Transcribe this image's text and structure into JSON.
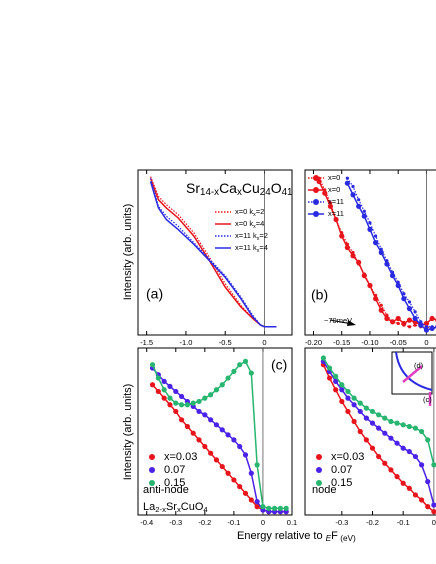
{
  "y_label": "Intensity (arb. units)",
  "x_label_parts": [
    "Energy relative to ",
    "E",
    "F",
    " (eV)"
  ],
  "chart_data": [
    {
      "type": "line",
      "panel_label": "(a)",
      "legend": "right",
      "formula_parts": [
        "Sr",
        "14-x",
        "Ca",
        "x",
        "Cu",
        "24",
        "O",
        "41"
      ],
      "xlim": [
        -1.61,
        0.35
      ],
      "ylim": [
        0,
        1
      ],
      "xticks": [
        -1.5,
        {
          "value": -1.0,
          "label": "-1.0"
        },
        -0.5,
        0
      ],
      "series": [
        {
          "name": [
            "x=0  k",
            "x",
            "=2"
          ],
          "color": "#e8141c",
          "dash": "dotted",
          "x": [
            -1.45,
            -1.35,
            -1.25,
            -1.1,
            -0.9,
            -0.7,
            -0.5,
            -0.3,
            -0.15,
            -0.05,
            0,
            0.15
          ],
          "values": [
            0.96,
            0.84,
            0.79,
            0.73,
            0.62,
            0.47,
            0.31,
            0.18,
            0.1,
            0.06,
            0.05,
            0.05
          ]
        },
        {
          "name": [
            "x=0  k",
            "x",
            "=4"
          ],
          "color": "#e8141c",
          "x": [
            -1.45,
            -1.35,
            -1.25,
            -1.1,
            -0.9,
            -0.7,
            -0.5,
            -0.3,
            -0.15,
            -0.05,
            0,
            0.15
          ],
          "values": [
            0.95,
            0.82,
            0.77,
            0.71,
            0.6,
            0.45,
            0.29,
            0.17,
            0.1,
            0.06,
            0.05,
            0.05
          ]
        },
        {
          "name": [
            "x=11 k",
            "x",
            "=2"
          ],
          "color": "#2a2ae0",
          "dash": "dotted",
          "x": [
            -1.45,
            -1.35,
            -1.25,
            -1.1,
            -0.9,
            -0.7,
            -0.5,
            -0.3,
            -0.15,
            -0.05,
            0,
            0.15
          ],
          "values": [
            0.95,
            0.78,
            0.72,
            0.66,
            0.56,
            0.46,
            0.36,
            0.23,
            0.12,
            0.06,
            0.05,
            0.05
          ]
        },
        {
          "name": [
            "x=11 k",
            "x",
            "=4"
          ],
          "color": "#2a2ae0",
          "x": [
            -1.45,
            -1.35,
            -1.25,
            -1.1,
            -0.9,
            -0.7,
            -0.5,
            -0.3,
            -0.15,
            -0.05,
            0,
            0.15
          ],
          "values": [
            0.93,
            0.77,
            0.7,
            0.64,
            0.55,
            0.45,
            0.35,
            0.22,
            0.11,
            0.06,
            0.05,
            0.05
          ]
        }
      ]
    },
    {
      "type": "line",
      "panel_label": "(b)",
      "legend": "right",
      "note": "~70meV",
      "xlim": [
        -0.215,
        0.024
      ],
      "ylim": [
        0,
        1
      ],
      "xticks": [
        {
          "value": -0.2,
          "label": "-0.20"
        },
        -0.15,
        {
          "value": -0.1,
          "label": "-0.10"
        },
        -0.05,
        0
      ],
      "series": [
        {
          "name": "x=0",
          "color": "#e8141c",
          "dash": "dotted",
          "markers": true,
          "x": [
            -0.19,
            -0.18,
            -0.17,
            -0.16,
            -0.15,
            -0.14,
            -0.13,
            -0.12,
            -0.11,
            -0.1,
            -0.09,
            -0.08,
            -0.07,
            -0.06,
            -0.05,
            -0.04,
            -0.03,
            -0.02,
            -0.01,
            0,
            0.01,
            0.02
          ],
          "values": [
            0.95,
            0.88,
            0.8,
            0.7,
            0.62,
            0.55,
            0.5,
            0.43,
            0.37,
            0.3,
            0.24,
            0.18,
            0.12,
            0.08,
            0.07,
            0.06,
            0.05,
            0.06,
            0.05,
            0.05,
            0.04,
            0.04
          ]
        },
        {
          "name": "x=0",
          "color": "#e8141c",
          "markers": true,
          "x": [
            -0.19,
            -0.18,
            -0.17,
            -0.16,
            -0.15,
            -0.14,
            -0.13,
            -0.12,
            -0.11,
            -0.1,
            -0.09,
            -0.08,
            -0.07,
            -0.06,
            -0.05,
            -0.04,
            -0.03,
            -0.02,
            -0.01,
            0,
            0.01,
            0.02
          ],
          "values": [
            0.93,
            0.86,
            0.78,
            0.7,
            0.6,
            0.53,
            0.48,
            0.44,
            0.36,
            0.3,
            0.22,
            0.15,
            0.1,
            0.08,
            0.1,
            0.07,
            0.09,
            0.08,
            0.06,
            0.07,
            0.1,
            0.09
          ]
        },
        {
          "name": "x=11",
          "color": "#2a2ae0",
          "dash": "dotted",
          "markers": true,
          "x": [
            -0.14,
            -0.13,
            -0.12,
            -0.11,
            -0.1,
            -0.09,
            -0.08,
            -0.07,
            -0.06,
            -0.05,
            -0.04,
            -0.03,
            -0.02,
            -0.01,
            0,
            0.01,
            0.02
          ],
          "values": [
            0.95,
            0.9,
            0.82,
            0.75,
            0.68,
            0.6,
            0.52,
            0.45,
            0.38,
            0.32,
            0.25,
            0.2,
            0.14,
            0.08,
            0.05,
            0.05,
            0.04
          ]
        },
        {
          "name": "x=11",
          "color": "#2a2ae0",
          "markers": true,
          "x": [
            -0.14,
            -0.13,
            -0.12,
            -0.11,
            -0.1,
            -0.09,
            -0.08,
            -0.07,
            -0.06,
            -0.05,
            -0.04,
            -0.03,
            -0.02,
            -0.01,
            0,
            0.01,
            0.02
          ],
          "values": [
            0.92,
            0.85,
            0.78,
            0.72,
            0.64,
            0.56,
            0.5,
            0.43,
            0.36,
            0.3,
            0.22,
            0.16,
            0.1,
            0.06,
            0.03,
            0.04,
            0.05
          ]
        }
      ]
    },
    {
      "type": "line",
      "panel_label": "(c)",
      "legend": "left",
      "note": "anti-node",
      "formula_parts": [
        "La",
        "2-x",
        "Sr",
        "x",
        "CuO",
        "4"
      ],
      "xlim": [
        -0.43,
        0.1
      ],
      "ylim": [
        0,
        1
      ],
      "xticks": [
        -0.4,
        -0.3,
        -0.2,
        -0.1,
        0,
        0.1
      ],
      "series": [
        {
          "name": "x=0.03",
          "color": "#e8141c",
          "markers": true,
          "x": [
            -0.38,
            -0.36,
            -0.34,
            -0.32,
            -0.3,
            -0.28,
            -0.26,
            -0.24,
            -0.22,
            -0.2,
            -0.18,
            -0.16,
            -0.14,
            -0.12,
            -0.1,
            -0.08,
            -0.06,
            -0.04,
            -0.02,
            0,
            0.02,
            0.04,
            0.06,
            0.08
          ],
          "values": [
            0.78,
            0.74,
            0.7,
            0.66,
            0.62,
            0.57,
            0.53,
            0.49,
            0.45,
            0.41,
            0.37,
            0.33,
            0.29,
            0.25,
            0.21,
            0.17,
            0.13,
            0.09,
            0.05,
            0.03,
            0.02,
            0.02,
            0.02,
            0.02
          ]
        },
        {
          "name": "0.07",
          "color": "#4b22e8",
          "markers": true,
          "x": [
            -0.38,
            -0.36,
            -0.34,
            -0.32,
            -0.3,
            -0.28,
            -0.26,
            -0.24,
            -0.22,
            -0.2,
            -0.18,
            -0.16,
            -0.14,
            -0.12,
            -0.1,
            -0.08,
            -0.06,
            -0.04,
            -0.02,
            0,
            0.02,
            0.04,
            0.06,
            0.08
          ],
          "values": [
            0.88,
            0.84,
            0.8,
            0.77,
            0.74,
            0.71,
            0.68,
            0.65,
            0.62,
            0.6,
            0.57,
            0.54,
            0.51,
            0.48,
            0.45,
            0.41,
            0.36,
            0.25,
            0.08,
            0.03,
            0.02,
            0.02,
            0.02,
            0.02
          ]
        },
        {
          "name": "0.15",
          "color": "#27b56f",
          "markers": true,
          "x": [
            -0.38,
            -0.36,
            -0.34,
            -0.32,
            -0.3,
            -0.28,
            -0.26,
            -0.24,
            -0.22,
            -0.2,
            -0.18,
            -0.16,
            -0.14,
            -0.12,
            -0.1,
            -0.08,
            -0.06,
            -0.04,
            -0.02,
            0,
            0.02,
            0.04,
            0.06,
            0.08
          ],
          "values": [
            0.9,
            0.82,
            0.75,
            0.7,
            0.67,
            0.66,
            0.66,
            0.67,
            0.68,
            0.7,
            0.72,
            0.75,
            0.78,
            0.82,
            0.86,
            0.9,
            0.92,
            0.85,
            0.3,
            0.05,
            0.04,
            0.04,
            0.04,
            0.04
          ]
        }
      ]
    },
    {
      "type": "line",
      "legend": "left",
      "note": "node",
      "inset_labels": [
        "(d)",
        "(c)"
      ],
      "xlim": [
        -0.42,
        0.02
      ],
      "ylim": [
        0,
        1
      ],
      "xticks": [
        -0.3,
        -0.2,
        -0.1,
        0
      ],
      "series": [
        {
          "name": "x=0.03",
          "color": "#e8141c",
          "markers": true,
          "x": [
            -0.36,
            -0.34,
            -0.32,
            -0.3,
            -0.28,
            -0.26,
            -0.24,
            -0.22,
            -0.2,
            -0.18,
            -0.16,
            -0.14,
            -0.12,
            -0.1,
            -0.08,
            -0.06,
            -0.04,
            -0.02,
            0
          ],
          "values": [
            0.9,
            0.82,
            0.75,
            0.68,
            0.62,
            0.56,
            0.5,
            0.45,
            0.4,
            0.35,
            0.31,
            0.27,
            0.23,
            0.19,
            0.16,
            0.12,
            0.09,
            0.05,
            0.02
          ]
        },
        {
          "name": "0.07",
          "color": "#4b22e8",
          "markers": true,
          "x": [
            -0.36,
            -0.34,
            -0.32,
            -0.3,
            -0.28,
            -0.26,
            -0.24,
            -0.22,
            -0.2,
            -0.18,
            -0.16,
            -0.14,
            -0.12,
            -0.1,
            -0.08,
            -0.06,
            -0.04,
            -0.02,
            0
          ],
          "values": [
            0.92,
            0.86,
            0.8,
            0.75,
            0.7,
            0.66,
            0.62,
            0.58,
            0.55,
            0.52,
            0.49,
            0.46,
            0.43,
            0.4,
            0.38,
            0.35,
            0.3,
            0.2,
            0.06
          ]
        },
        {
          "name": "0.15",
          "color": "#27b56f",
          "markers": true,
          "x": [
            -0.36,
            -0.34,
            -0.32,
            -0.3,
            -0.28,
            -0.26,
            -0.24,
            -0.22,
            -0.2,
            -0.18,
            -0.16,
            -0.14,
            -0.12,
            -0.1,
            -0.08,
            -0.06,
            -0.04,
            -0.02,
            0
          ],
          "values": [
            0.94,
            0.88,
            0.83,
            0.78,
            0.74,
            0.7,
            0.67,
            0.64,
            0.62,
            0.6,
            0.58,
            0.56,
            0.55,
            0.54,
            0.53,
            0.52,
            0.5,
            0.45,
            0.3
          ]
        }
      ]
    }
  ]
}
